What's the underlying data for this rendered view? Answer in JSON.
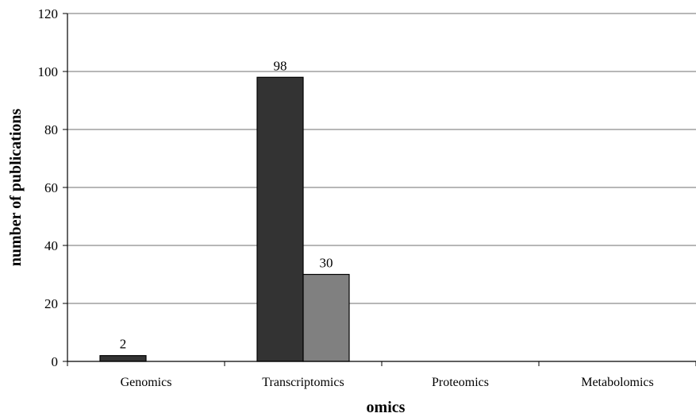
{
  "chart_data": {
    "type": "bar",
    "categories": [
      "Genomics",
      "Transcriptomics",
      "Proteomics",
      "Metabolomics"
    ],
    "series": [
      {
        "values": [
          2,
          98,
          0,
          0
        ],
        "color": "#333333"
      },
      {
        "values": [
          0,
          30,
          0,
          0
        ],
        "color": "#808080"
      }
    ],
    "data_labels": [
      {
        "series": 0,
        "category": 0,
        "text": "2"
      },
      {
        "series": 0,
        "category": 1,
        "text": "98"
      },
      {
        "series": 1,
        "category": 1,
        "text": "30"
      }
    ],
    "xlabel": "omics",
    "ylabel": "number of publications",
    "ylim": [
      0,
      120
    ],
    "yticks": [
      "0",
      "20",
      "40",
      "60",
      "80",
      "100",
      "120"
    ],
    "grid": true,
    "legend": "none"
  }
}
